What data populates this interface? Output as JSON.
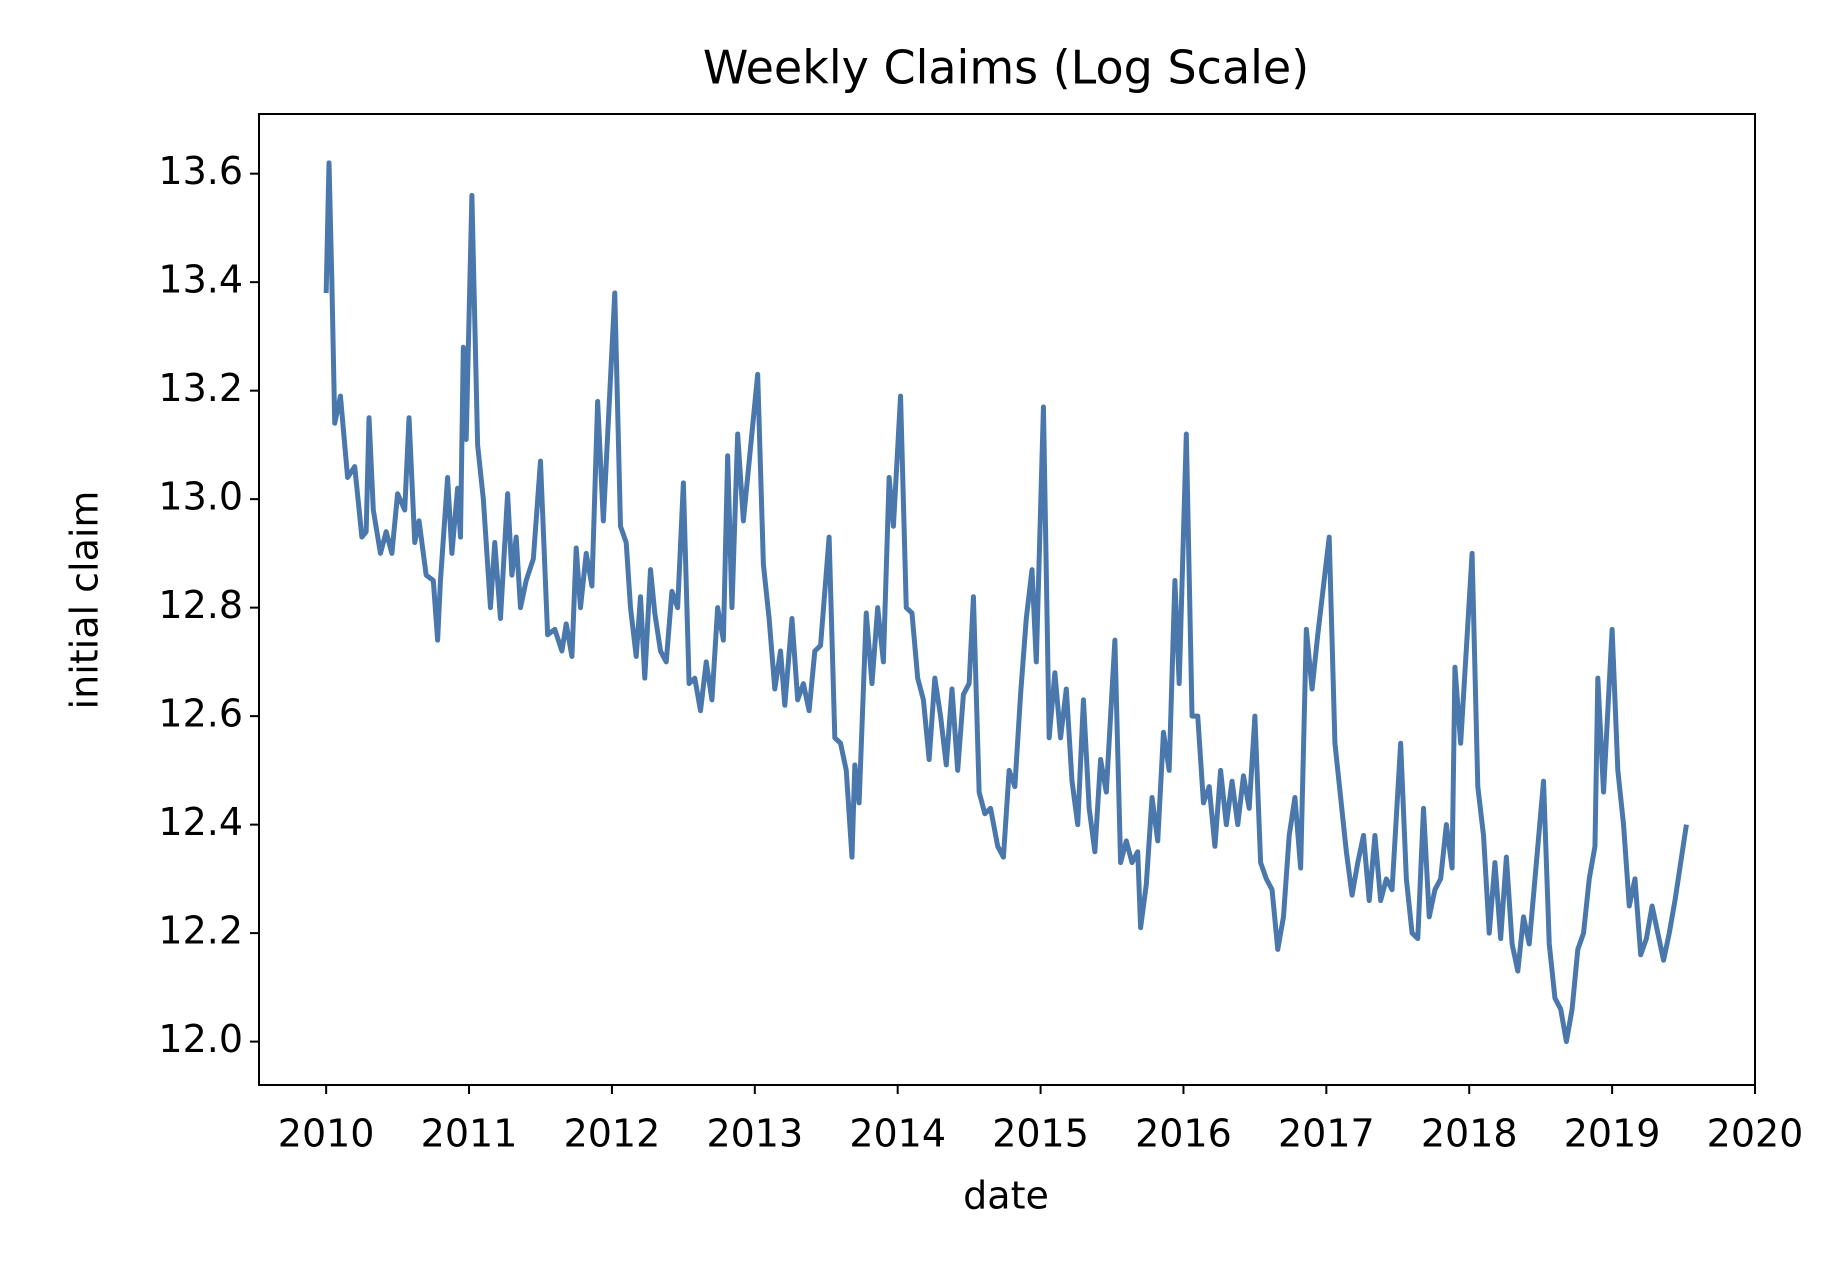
{
  "chart_data": {
    "type": "line",
    "title": "Weekly Claims (Log Scale)",
    "x_label": "date",
    "y_label": "initial claim",
    "xlim": [
      2009.53,
      2020
    ],
    "xticks": [
      2010,
      2011,
      2012,
      2013,
      2014,
      2015,
      2016,
      2017,
      2018,
      2019,
      2020
    ],
    "ylim": [
      11.92,
      13.71
    ],
    "yticks": [
      {
        "value": 12.0,
        "label": "12.0"
      },
      {
        "value": 12.2,
        "label": "12.2"
      },
      {
        "value": 12.4,
        "label": "12.4"
      },
      {
        "value": 12.6,
        "label": "12.6"
      },
      {
        "value": 12.8,
        "label": "12.8"
      },
      {
        "value": 13.0,
        "label": "13.0"
      },
      {
        "value": 13.2,
        "label": "13.2"
      },
      {
        "value": 13.4,
        "label": "13.4"
      },
      {
        "value": 13.6,
        "label": "13.6"
      }
    ],
    "grid": false,
    "x": [
      2010.0,
      2010.02,
      2010.04,
      2010.06,
      2010.1,
      2010.15,
      2010.2,
      2010.25,
      2010.28,
      2010.3,
      2010.33,
      2010.38,
      2010.42,
      2010.46,
      2010.5,
      2010.55,
      2010.58,
      2010.62,
      2010.65,
      2010.7,
      2010.75,
      2010.78,
      2010.8,
      2010.85,
      2010.88,
      2010.92,
      2010.94,
      2010.96,
      2010.98,
      2011.02,
      2011.06,
      2011.1,
      2011.15,
      2011.18,
      2011.22,
      2011.27,
      2011.3,
      2011.33,
      2011.36,
      2011.4,
      2011.45,
      2011.5,
      2011.55,
      2011.6,
      2011.65,
      2011.68,
      2011.72,
      2011.75,
      2011.78,
      2011.82,
      2011.86,
      2011.9,
      2011.94,
      2012.02,
      2012.06,
      2012.1,
      2012.13,
      2012.17,
      2012.2,
      2012.23,
      2012.27,
      2012.3,
      2012.34,
      2012.38,
      2012.42,
      2012.46,
      2012.5,
      2012.54,
      2012.58,
      2012.62,
      2012.66,
      2012.7,
      2012.74,
      2012.78,
      2012.81,
      2012.84,
      2012.88,
      2012.92,
      2013.02,
      2013.06,
      2013.1,
      2013.14,
      2013.18,
      2013.21,
      2013.26,
      2013.3,
      2013.34,
      2013.38,
      2013.42,
      2013.46,
      2013.52,
      2013.56,
      2013.6,
      2013.64,
      2013.68,
      2013.7,
      2013.73,
      2013.78,
      2013.82,
      2013.86,
      2013.9,
      2013.94,
      2013.97,
      2014.02,
      2014.06,
      2014.1,
      2014.14,
      2014.18,
      2014.22,
      2014.26,
      2014.3,
      2014.34,
      2014.38,
      2014.42,
      2014.46,
      2014.5,
      2014.53,
      2014.57,
      2014.61,
      2014.65,
      2014.7,
      2014.74,
      2014.78,
      2014.82,
      2014.86,
      2014.9,
      2014.94,
      2014.97,
      2015.02,
      2015.06,
      2015.1,
      2015.14,
      2015.18,
      2015.22,
      2015.26,
      2015.3,
      2015.34,
      2015.38,
      2015.42,
      2015.46,
      2015.52,
      2015.56,
      2015.6,
      2015.64,
      2015.68,
      2015.7,
      2015.74,
      2015.78,
      2015.82,
      2015.86,
      2015.9,
      2015.94,
      2015.97,
      2016.02,
      2016.06,
      2016.1,
      2016.14,
      2016.18,
      2016.22,
      2016.26,
      2016.3,
      2016.34,
      2016.38,
      2016.42,
      2016.46,
      2016.5,
      2016.54,
      2016.58,
      2016.62,
      2016.66,
      2016.7,
      2016.74,
      2016.78,
      2016.82,
      2016.86,
      2016.9,
      2016.94,
      2017.02,
      2017.06,
      2017.1,
      2017.14,
      2017.18,
      2017.22,
      2017.26,
      2017.3,
      2017.34,
      2017.38,
      2017.42,
      2017.46,
      2017.52,
      2017.56,
      2017.6,
      2017.64,
      2017.68,
      2017.72,
      2017.76,
      2017.8,
      2017.84,
      2017.88,
      2017.9,
      2017.94,
      2018.02,
      2018.06,
      2018.1,
      2018.14,
      2018.18,
      2018.22,
      2018.26,
      2018.3,
      2018.34,
      2018.38,
      2018.42,
      2018.46,
      2018.52,
      2018.56,
      2018.6,
      2018.64,
      2018.68,
      2018.72,
      2018.76,
      2018.8,
      2018.84,
      2018.88,
      2018.9,
      2018.94,
      2019.0,
      2019.04,
      2019.08,
      2019.12,
      2019.16,
      2019.2,
      2019.24,
      2019.28,
      2019.32,
      2019.36,
      2019.4,
      2019.44,
      2019.48,
      2019.52
    ],
    "series": [
      {
        "name": "initial claim",
        "color": "#4a78ad",
        "values": [
          13.38,
          13.62,
          13.4,
          13.14,
          13.19,
          13.04,
          13.06,
          12.93,
          12.94,
          13.15,
          12.98,
          12.9,
          12.94,
          12.9,
          13.01,
          12.98,
          13.15,
          12.92,
          12.96,
          12.86,
          12.85,
          12.74,
          12.85,
          13.04,
          12.9,
          13.02,
          12.93,
          13.28,
          13.11,
          13.56,
          13.1,
          13.0,
          12.8,
          12.92,
          12.78,
          13.01,
          12.86,
          12.93,
          12.8,
          12.85,
          12.89,
          13.07,
          12.75,
          12.76,
          12.72,
          12.77,
          12.71,
          12.91,
          12.8,
          12.9,
          12.84,
          13.18,
          12.96,
          13.38,
          12.95,
          12.92,
          12.8,
          12.71,
          12.82,
          12.67,
          12.87,
          12.79,
          12.72,
          12.7,
          12.83,
          12.8,
          13.03,
          12.66,
          12.67,
          12.61,
          12.7,
          12.63,
          12.8,
          12.74,
          13.08,
          12.8,
          13.12,
          12.96,
          13.23,
          12.88,
          12.78,
          12.65,
          12.72,
          12.62,
          12.78,
          12.63,
          12.66,
          12.61,
          12.72,
          12.73,
          12.93,
          12.56,
          12.55,
          12.5,
          12.34,
          12.51,
          12.44,
          12.79,
          12.66,
          12.8,
          12.7,
          13.04,
          12.95,
          13.19,
          12.8,
          12.79,
          12.67,
          12.63,
          12.52,
          12.67,
          12.6,
          12.51,
          12.65,
          12.5,
          12.64,
          12.66,
          12.82,
          12.46,
          12.42,
          12.43,
          12.36,
          12.34,
          12.5,
          12.47,
          12.64,
          12.78,
          12.87,
          12.7,
          13.17,
          12.56,
          12.68,
          12.56,
          12.65,
          12.48,
          12.4,
          12.63,
          12.43,
          12.35,
          12.52,
          12.46,
          12.74,
          12.33,
          12.37,
          12.33,
          12.35,
          12.21,
          12.29,
          12.45,
          12.37,
          12.57,
          12.5,
          12.85,
          12.66,
          13.12,
          12.6,
          12.6,
          12.44,
          12.47,
          12.36,
          12.5,
          12.4,
          12.48,
          12.4,
          12.49,
          12.43,
          12.6,
          12.33,
          12.3,
          12.28,
          12.17,
          12.23,
          12.38,
          12.45,
          12.32,
          12.76,
          12.65,
          12.75,
          12.93,
          12.55,
          12.45,
          12.35,
          12.27,
          12.33,
          12.38,
          12.26,
          12.38,
          12.26,
          12.3,
          12.28,
          12.55,
          12.3,
          12.2,
          12.19,
          12.43,
          12.23,
          12.28,
          12.3,
          12.4,
          12.32,
          12.69,
          12.55,
          12.9,
          12.47,
          12.38,
          12.2,
          12.33,
          12.19,
          12.34,
          12.18,
          12.13,
          12.23,
          12.18,
          12.3,
          12.48,
          12.18,
          12.08,
          12.06,
          12.0,
          12.06,
          12.17,
          12.2,
          12.3,
          12.36,
          12.67,
          12.46,
          12.76,
          12.5,
          12.4,
          12.25,
          12.3,
          12.16,
          12.19,
          12.25,
          12.2,
          12.15,
          12.2,
          12.26,
          12.33,
          12.4
        ]
      }
    ]
  }
}
